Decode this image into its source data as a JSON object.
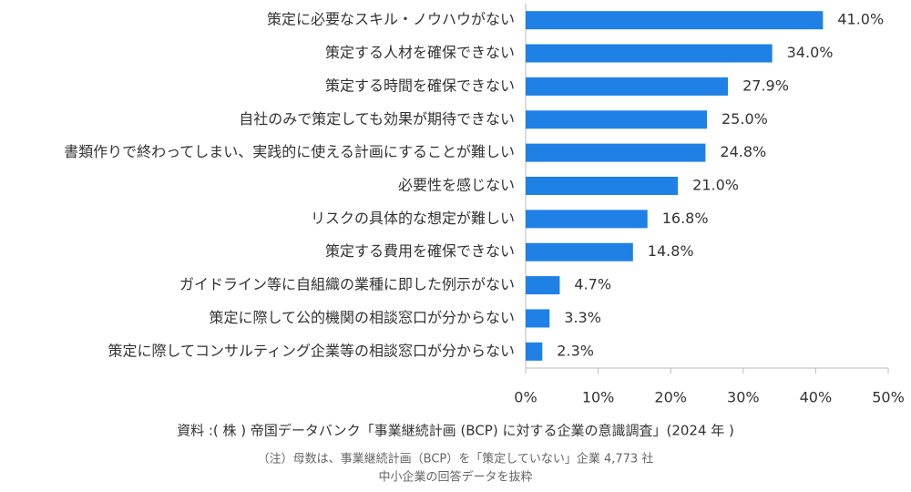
{
  "chart_data": {
    "type": "barh",
    "categories": [
      "策定に必要なスキル・ノウハウがない",
      "策定する人材を確保できない",
      "策定する時間を確保できない",
      "自社のみで策定しても効果が期待できない",
      "書類作りで終わってしまい、実践的に使える計画にすることが難しい",
      "必要性を感じない",
      "リスクの具体的な想定が難しい",
      "策定する費用を確保できない",
      "ガイドライン等に自組織の業種に即した例示がない",
      "策定に際して公的機関の相談窓口が分からない",
      "策定に際してコンサルティング企業等の相談窓口が分からない"
    ],
    "values": [
      41.0,
      34.0,
      27.9,
      25.0,
      24.8,
      21.0,
      16.8,
      14.8,
      4.7,
      3.3,
      2.3
    ],
    "value_labels": [
      "41.0%",
      "34.0%",
      "27.9%",
      "25.0%",
      "24.8%",
      "21.0%",
      "16.8%",
      "14.8%",
      "4.7%",
      "3.3%",
      "2.3%"
    ],
    "color": "#1f80e6",
    "xlim": [
      0,
      50
    ],
    "xticks": [
      {
        "value": 0,
        "label": "0%"
      },
      {
        "value": 10,
        "label": "10%"
      },
      {
        "value": 20,
        "label": "20%"
      },
      {
        "value": 30,
        "label": "30%"
      },
      {
        "value": 40,
        "label": "40%"
      },
      {
        "value": 50,
        "label": "50%"
      }
    ],
    "grid": false,
    "source": "資料 :( 株 ) 帝国データバンク「事業継続計画 (BCP) に対する企業の意識調査」(2024 年 )",
    "notes": [
      "（注）母数は、事業継続計画（BCP）を「策定していない」企業 4,773 社",
      "中小企業の回答データを抜粋"
    ]
  }
}
